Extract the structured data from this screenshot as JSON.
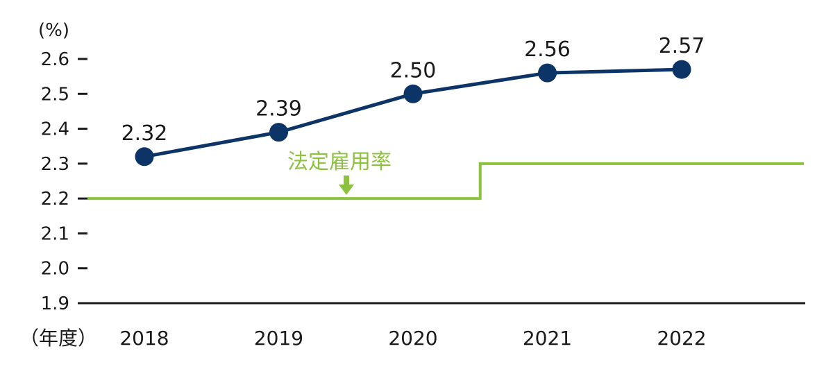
{
  "chart_data": {
    "type": "line",
    "y_unit": "(%)",
    "x_unit": "（年度）",
    "categories": [
      "2018",
      "2019",
      "2020",
      "2021",
      "2022"
    ],
    "ylim": [
      1.9,
      2.6
    ],
    "yticks": [
      "1.9",
      "2.0",
      "2.1",
      "2.2",
      "2.3",
      "2.4",
      "2.5",
      "2.6"
    ],
    "series": [
      {
        "values": [
          2.32,
          2.39,
          2.5,
          2.56,
          2.57
        ],
        "labels": [
          "2.32",
          "2.39",
          "2.50",
          "2.56",
          "2.57"
        ],
        "color": "#0c3466"
      }
    ],
    "legal_rate": {
      "label": "法定雇用率",
      "color": "#8cc23f",
      "before": 2.2,
      "after": 2.3,
      "change_between": [
        "2020",
        "2021"
      ]
    },
    "axis_color": "#1a1a1a"
  }
}
